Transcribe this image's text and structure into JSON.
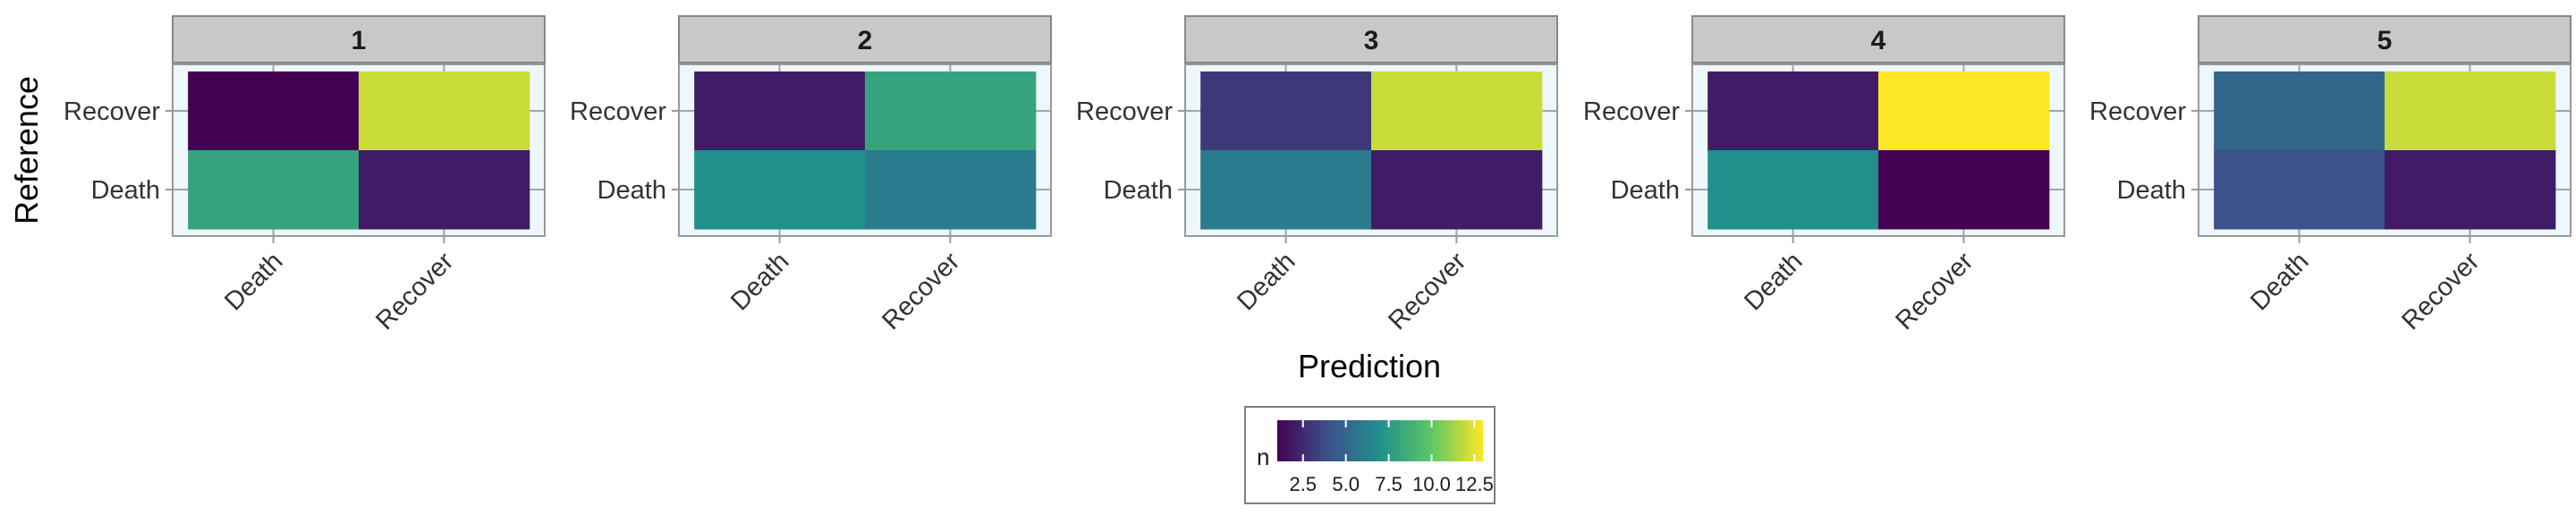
{
  "chart_data": {
    "type": "heatmap",
    "xlabel": "Prediction",
    "ylabel": "Reference",
    "x_categories": [
      "Death",
      "Recover"
    ],
    "y_categories": [
      "Death",
      "Recover"
    ],
    "facets": [
      {
        "label": "1",
        "cells": [
          {
            "x": "Death",
            "y": "Recover",
            "value": 1
          },
          {
            "x": "Recover",
            "y": "Recover",
            "value": 12
          },
          {
            "x": "Death",
            "y": "Death",
            "value": 8
          },
          {
            "x": "Recover",
            "y": "Death",
            "value": 2
          }
        ]
      },
      {
        "label": "2",
        "cells": [
          {
            "x": "Death",
            "y": "Recover",
            "value": 2
          },
          {
            "x": "Recover",
            "y": "Recover",
            "value": 8
          },
          {
            "x": "Death",
            "y": "Death",
            "value": 7
          },
          {
            "x": "Recover",
            "y": "Death",
            "value": 6
          }
        ]
      },
      {
        "label": "3",
        "cells": [
          {
            "x": "Death",
            "y": "Recover",
            "value": 3
          },
          {
            "x": "Recover",
            "y": "Recover",
            "value": 12
          },
          {
            "x": "Death",
            "y": "Death",
            "value": 6
          },
          {
            "x": "Recover",
            "y": "Death",
            "value": 2
          }
        ]
      },
      {
        "label": "4",
        "cells": [
          {
            "x": "Death",
            "y": "Recover",
            "value": 2
          },
          {
            "x": "Recover",
            "y": "Recover",
            "value": 13
          },
          {
            "x": "Death",
            "y": "Death",
            "value": 7
          },
          {
            "x": "Recover",
            "y": "Death",
            "value": 1
          }
        ]
      },
      {
        "label": "5",
        "cells": [
          {
            "x": "Death",
            "y": "Recover",
            "value": 5
          },
          {
            "x": "Recover",
            "y": "Recover",
            "value": 12
          },
          {
            "x": "Death",
            "y": "Death",
            "value": 4
          },
          {
            "x": "Recover",
            "y": "Death",
            "value": 2
          }
        ]
      }
    ],
    "legend": {
      "title": "n",
      "placement": "bottom",
      "range": [
        1,
        13
      ],
      "ticks": [
        2.5,
        5.0,
        7.5,
        10.0,
        12.5
      ],
      "tick_labels": [
        "2.5",
        "5.0",
        "7.5",
        "10.0",
        "12.5"
      ]
    },
    "colors": {
      "palette": [
        "#440154",
        "#3B528B",
        "#21908C",
        "#5DC863",
        "#FDE725"
      ],
      "strip_fill": "#c8c8c8",
      "strip_border": "#888888",
      "panel_border": "#999999",
      "panel_background": "#eef7fc",
      "grid": "#9ea7b0"
    }
  }
}
